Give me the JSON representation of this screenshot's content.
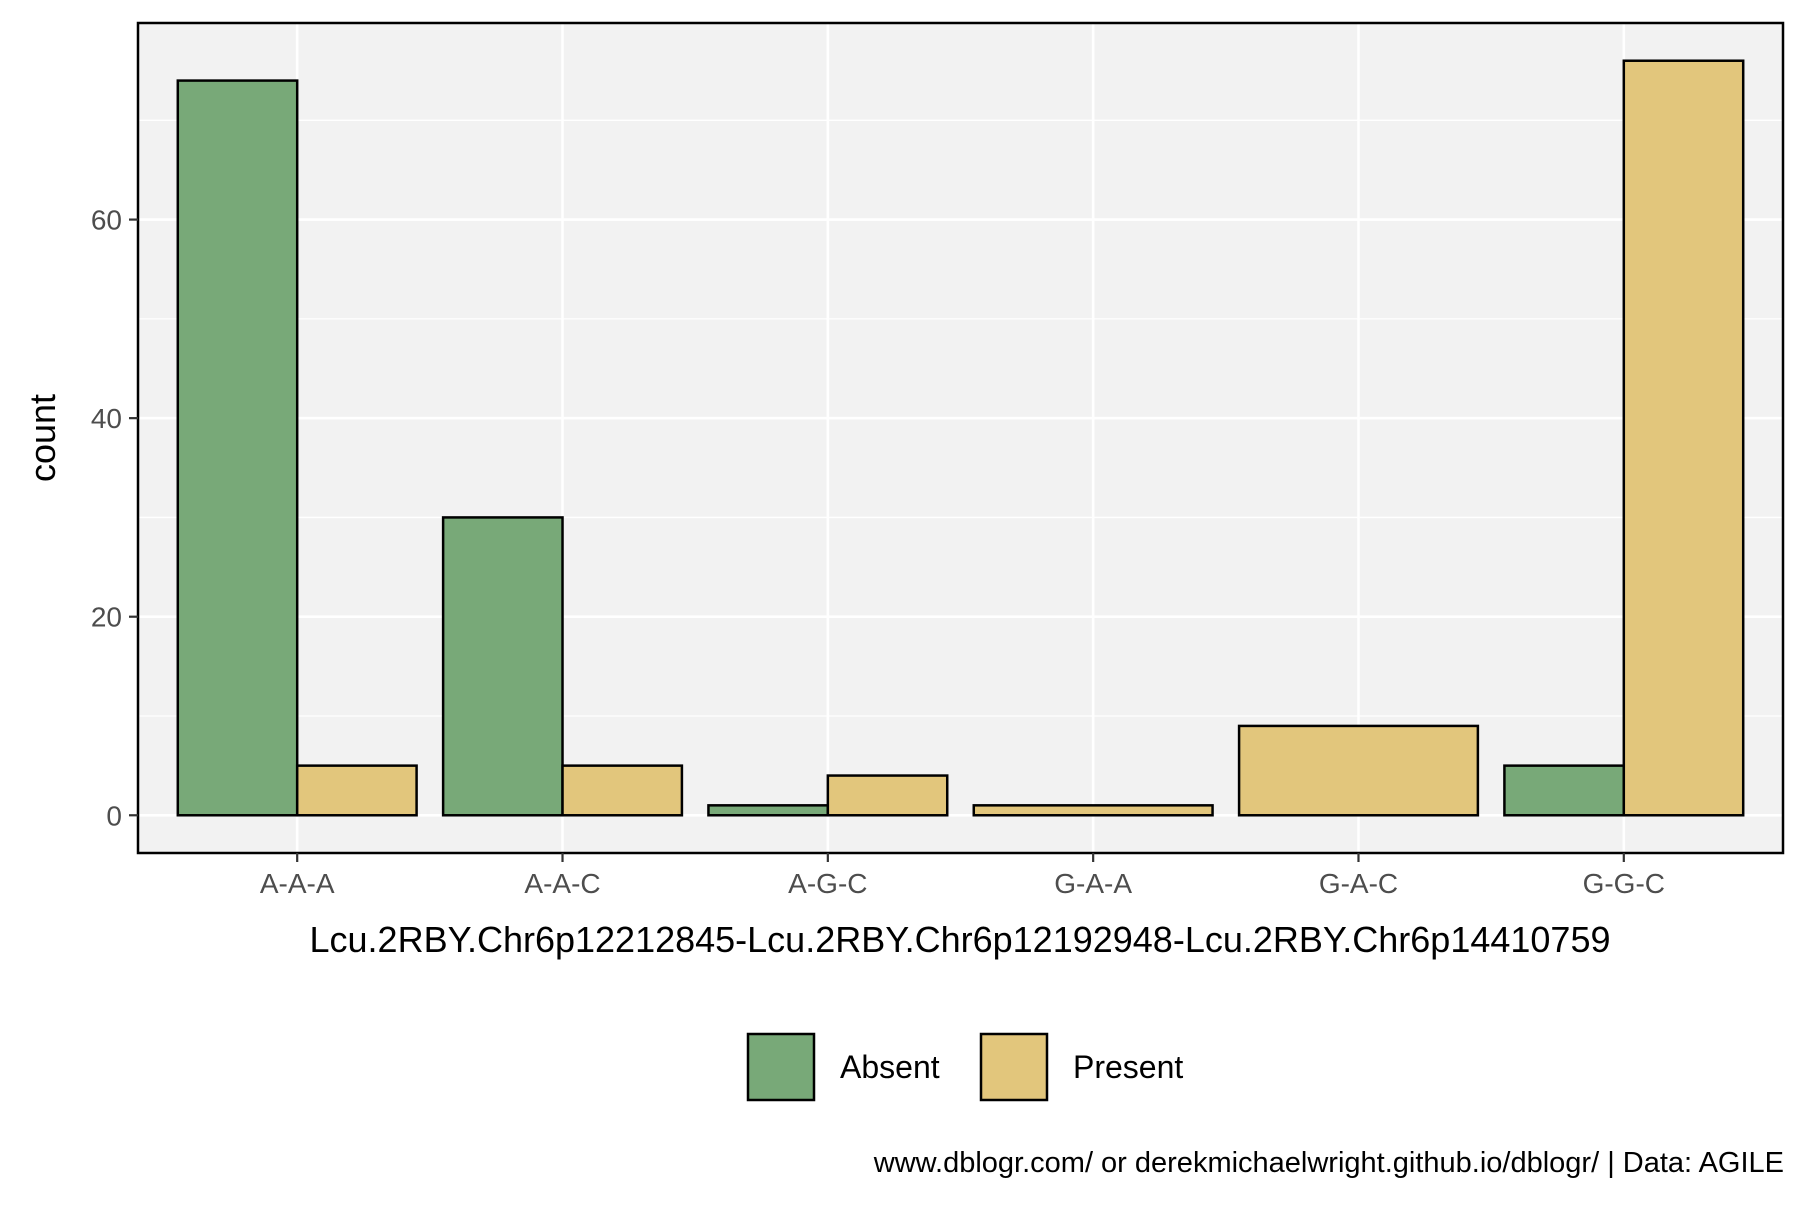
{
  "chart_data": {
    "type": "bar",
    "categories": [
      "A-A-A",
      "A-A-C",
      "A-G-C",
      "G-A-A",
      "G-A-C",
      "G-G-C"
    ],
    "series": [
      {
        "name": "Absent",
        "color": "#78a978",
        "values": [
          74,
          30,
          1,
          0,
          0,
          5
        ]
      },
      {
        "name": "Present",
        "color": "#e2c67c",
        "values": [
          5,
          5,
          4,
          1,
          9,
          76
        ]
      }
    ],
    "xlabel": "Lcu.2RBY.Chr6p12212845-Lcu.2RBY.Chr6p12192948-Lcu.2RBY.Chr6p14410759",
    "ylabel": "count",
    "ylim": [
      -3.8,
      79.8
    ],
    "yticks": [
      0,
      20,
      40,
      60
    ],
    "grid": true,
    "panel_background": "#f2f2f2",
    "legend_position": "bottom",
    "caption": "www.dblogr.com/ or derekmichaelwright.github.io/dblogr/ | Data: AGILE"
  }
}
